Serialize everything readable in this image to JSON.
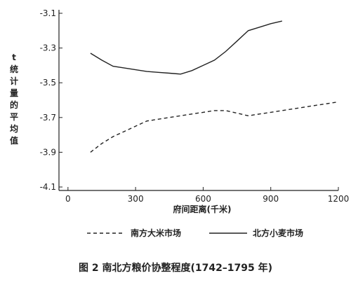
{
  "figure": {
    "caption": "图 2   南北方粮价协整程度(1742–1795 年)"
  },
  "chart_data": {
    "type": "line",
    "xlabel": "府间距离(千米)",
    "ylabel": "t统计量的平均值",
    "xlim": [
      -40,
      1200
    ],
    "ylim": [
      -4.12,
      -3.08
    ],
    "x_ticks": [
      0,
      300,
      600,
      900,
      1200
    ],
    "x_tick_labels": [
      "0",
      "300",
      "600",
      "900",
      "1200"
    ],
    "y_ticks": [
      -3.1,
      -3.3,
      -3.5,
      -3.7,
      -3.9,
      -4.1
    ],
    "y_tick_labels": [
      "-3.1",
      "-3.3",
      "-3.5",
      "-3.7",
      "-3.9",
      "-4.1"
    ],
    "legend_position": "bottom",
    "series": [
      {
        "name": "南方大米市场",
        "style": "dashed",
        "color": "#222222",
        "x": [
          100,
          150,
          200,
          250,
          300,
          350,
          400,
          450,
          500,
          550,
          600,
          650,
          700,
          750,
          800,
          850,
          900,
          950,
          1000,
          1050,
          1100,
          1150,
          1200
        ],
        "y": [
          -3.9,
          -3.85,
          -3.81,
          -3.78,
          -3.75,
          -3.72,
          -3.71,
          -3.7,
          -3.69,
          -3.68,
          -3.67,
          -3.66,
          -3.66,
          -3.675,
          -3.69,
          -3.68,
          -3.67,
          -3.66,
          -3.65,
          -3.64,
          -3.63,
          -3.62,
          -3.61
        ]
      },
      {
        "name": "北方小麦市场",
        "style": "solid",
        "color": "#222222",
        "x": [
          100,
          150,
          200,
          250,
          300,
          350,
          400,
          450,
          500,
          550,
          600,
          650,
          700,
          750,
          800,
          850,
          900,
          950
        ],
        "y": [
          -3.33,
          -3.37,
          -3.405,
          -3.415,
          -3.425,
          -3.435,
          -3.44,
          -3.445,
          -3.45,
          -3.43,
          -3.4,
          -3.37,
          -3.32,
          -3.26,
          -3.2,
          -3.18,
          -3.16,
          -3.145
        ]
      }
    ]
  }
}
